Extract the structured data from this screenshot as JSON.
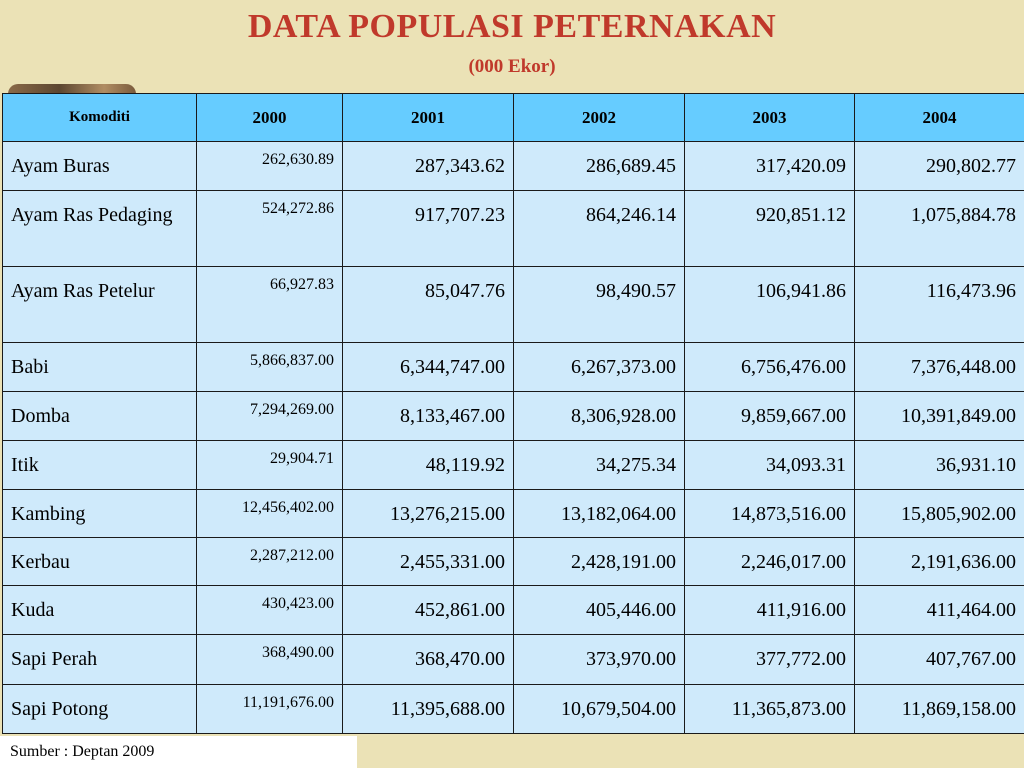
{
  "title": "DATA POPULASI PETERNAKAN",
  "subtitle": "(000 Ekor)",
  "table": {
    "headers": [
      "Komoditi",
      "2000",
      "2001",
      "2002",
      "2003",
      "2004"
    ],
    "rows": [
      {
        "name": "Ayam Buras",
        "values": [
          "262,630.89",
          "287,343.62",
          "286,689.45",
          "317,420.09",
          "290,802.77"
        ]
      },
      {
        "name": "Ayam Ras Pedaging",
        "values": [
          "524,272.86",
          "917,707.23",
          "864,246.14",
          "920,851.12",
          "1,075,884.78"
        ]
      },
      {
        "name": "Ayam Ras Petelur",
        "values": [
          "66,927.83",
          "85,047.76",
          "98,490.57",
          "106,941.86",
          "116,473.96"
        ]
      },
      {
        "name": "Babi",
        "values": [
          "5,866,837.00",
          "6,344,747.00",
          "6,267,373.00",
          "6,756,476.00",
          "7,376,448.00"
        ]
      },
      {
        "name": "Domba",
        "values": [
          "7,294,269.00",
          "8,133,467.00",
          "8,306,928.00",
          "9,859,667.00",
          "10,391,849.00"
        ]
      },
      {
        "name": "Itik",
        "values": [
          "29,904.71",
          "48,119.92",
          "34,275.34",
          "34,093.31",
          "36,931.10"
        ]
      },
      {
        "name": "Kambing",
        "values": [
          "12,456,402.00",
          "13,276,215.00",
          "13,182,064.00",
          "14,873,516.00",
          "15,805,902.00"
        ]
      },
      {
        "name": "Kerbau",
        "values": [
          "2,287,212.00",
          "2,455,331.00",
          "2,428,191.00",
          "2,246,017.00",
          "2,191,636.00"
        ]
      },
      {
        "name": "Kuda",
        "values": [
          "430,423.00",
          "452,861.00",
          "405,446.00",
          "411,916.00",
          "411,464.00"
        ]
      },
      {
        "name": "Sapi Perah",
        "values": [
          "368,490.00",
          "368,470.00",
          "373,970.00",
          "377,772.00",
          "407,767.00"
        ]
      },
      {
        "name": "Sapi Potong",
        "values": [
          "11,191,676.00",
          "11,395,688.00",
          "10,679,504.00",
          "11,365,873.00",
          "11,869,158.00"
        ]
      }
    ]
  },
  "source": "Sumber : Deptan 2009"
}
